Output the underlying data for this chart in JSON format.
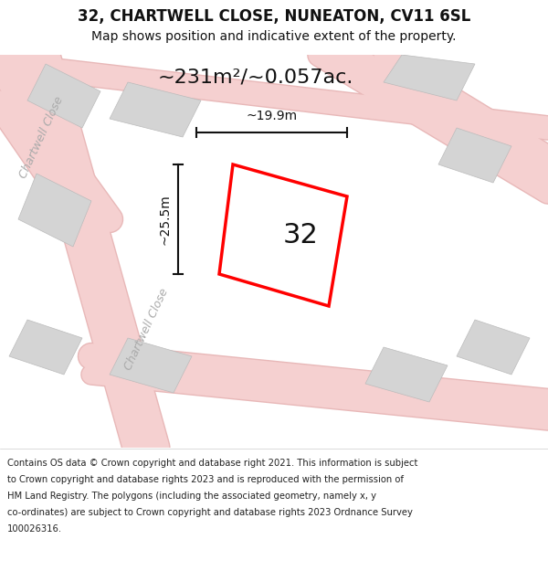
{
  "title": "32, CHARTWELL CLOSE, NUNEATON, CV11 6SL",
  "subtitle": "Map shows position and indicative extent of the property.",
  "area_text": "~231m²/~0.057ac.",
  "plot_number": "32",
  "dim_width": "~19.9m",
  "dim_height": "~25.5m",
  "footnote_lines": [
    "Contains OS data © Crown copyright and database right 2021. This information is subject",
    "to Crown copyright and database rights 2023 and is reproduced with the permission of",
    "HM Land Registry. The polygons (including the associated geometry, namely x, y",
    "co-ordinates) are subject to Crown copyright and database rights 2023 Ordnance Survey",
    "100026316."
  ],
  "map_bg": "#f0f0f0",
  "road_color": "#f5d0d0",
  "road_edge": "#e8b8b8",
  "block_color": "#d4d4d4",
  "block_edge": "#bbbbbb",
  "plot_line_color": "#ff0000",
  "dim_line_color": "#111111",
  "street_label_color": "#aaaaaa",
  "title_color": "#111111",
  "footnote_color": "#222222",
  "title_fontsize": 12,
  "subtitle_fontsize": 10,
  "area_fontsize": 16,
  "plot_num_fontsize": 22,
  "dim_fontsize": 10,
  "street_fontsize": 9,
  "foot_fontsize": 7.2
}
